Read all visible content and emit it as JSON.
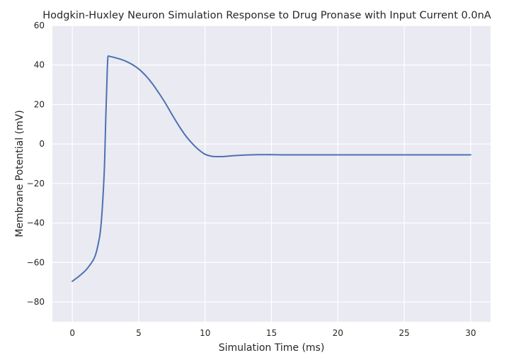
{
  "chart_data": {
    "type": "line",
    "title": "Hodgkin-Huxley Neuron Simulation Response to Drug Pronase with Input Current 0.0nA",
    "xlabel": "Simulation Time (ms)",
    "ylabel": "Membrane Potential (mV)",
    "xlim": [
      -1.5,
      31.5
    ],
    "ylim": [
      -90,
      60
    ],
    "x_ticks": [
      0,
      5,
      10,
      15,
      20,
      25,
      30
    ],
    "x_tick_labels": [
      "0",
      "5",
      "10",
      "15",
      "20",
      "25",
      "30"
    ],
    "y_ticks": [
      -80,
      -60,
      -40,
      -20,
      0,
      20,
      40,
      60
    ],
    "y_tick_labels": [
      "−80",
      "−60",
      "−40",
      "−20",
      "0",
      "20",
      "40",
      "60"
    ],
    "grid": true,
    "background_color": "#eaeaf2",
    "grid_color": "#ffffff",
    "series": [
      {
        "color": "#4c72b0",
        "x": [
          0,
          0.5,
          1.0,
          1.3,
          1.6,
          1.8,
          2.0,
          2.1,
          2.2,
          2.3,
          2.4,
          2.45,
          2.5,
          2.55,
          2.6,
          2.63,
          2.67,
          2.7,
          2.8,
          3.0,
          3.5,
          4.0,
          4.5,
          5.0,
          5.5,
          6.0,
          6.5,
          7.0,
          7.5,
          8.0,
          8.5,
          9.0,
          9.5,
          10.0,
          10.5,
          11.0,
          11.5,
          12.0,
          13.0,
          14.0,
          15.0,
          16.0,
          18.0,
          20.0,
          22.0,
          25.0,
          28.0,
          30.0
        ],
        "y": [
          -69.5,
          -67,
          -64,
          -61.5,
          -58.5,
          -55,
          -49,
          -45,
          -38,
          -28,
          -15,
          -5,
          8,
          20,
          30,
          37,
          43,
          44.5,
          44.4,
          44.1,
          43.2,
          42,
          40.3,
          38,
          34.8,
          30.8,
          26,
          20.8,
          15,
          9.5,
          4.5,
          0.5,
          -2.8,
          -5.2,
          -6.2,
          -6.4,
          -6.3,
          -6,
          -5.6,
          -5.4,
          -5.4,
          -5.5,
          -5.5,
          -5.5,
          -5.5,
          -5.5,
          -5.5,
          -5.5
        ]
      }
    ]
  }
}
